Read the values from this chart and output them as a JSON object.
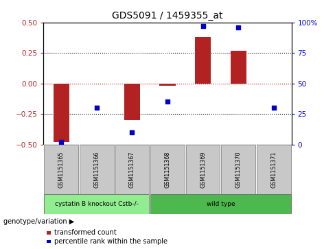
{
  "title": "GDS5091 / 1459355_at",
  "samples": [
    "GSM1151365",
    "GSM1151366",
    "GSM1151367",
    "GSM1151368",
    "GSM1151369",
    "GSM1151370",
    "GSM1151371"
  ],
  "bar_values": [
    -0.48,
    0.0,
    -0.3,
    -0.02,
    0.38,
    0.27,
    0.0
  ],
  "dot_values_pct": [
    2,
    30,
    10,
    35,
    97,
    96,
    30
  ],
  "bar_color": "#b22222",
  "dot_color": "#0000cc",
  "ylim_left": [
    -0.5,
    0.5
  ],
  "ylim_right": [
    0,
    100
  ],
  "yticks_left": [
    -0.5,
    -0.25,
    0,
    0.25,
    0.5
  ],
  "yticks_right": [
    0,
    25,
    50,
    75,
    100
  ],
  "hlines": [
    -0.25,
    0.25
  ],
  "hline_style_dotted": "dotted",
  "hline_color_dotted": "black",
  "hline0_color": "#cc0000",
  "hline0_style": "dotted",
  "groups": [
    {
      "label": "cystatin B knockout Cstb-/-",
      "indices": [
        0,
        1,
        2
      ],
      "color": "#90ee90"
    },
    {
      "label": "wild type",
      "indices": [
        3,
        4,
        5,
        6
      ],
      "color": "#4db84d"
    }
  ],
  "genotype_label": "genotype/variation",
  "legend_bar_label": "transformed count",
  "legend_dot_label": "percentile rank within the sample",
  "background_color": "#ffffff",
  "sample_box_color": "#c8c8c8",
  "bar_width": 0.45,
  "xlim": [
    -0.5,
    6.5
  ]
}
